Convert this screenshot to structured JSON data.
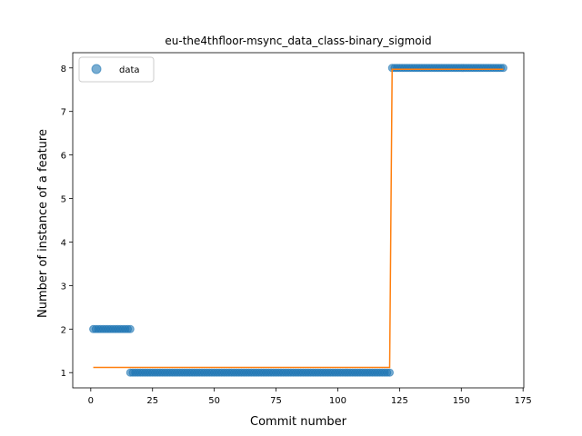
{
  "chart_data": {
    "type": "scatter",
    "title": "eu-the4thfloor-msync_data_class-binary_sigmoid",
    "xlabel": "Commit number",
    "ylabel": "Number of instance of a feature",
    "xlim": [
      -7.3,
      175.3
    ],
    "ylim": [
      0.65,
      8.35
    ],
    "xticks": [
      0,
      25,
      50,
      75,
      100,
      125,
      150,
      175
    ],
    "yticks": [
      1,
      2,
      3,
      4,
      5,
      6,
      7,
      8
    ],
    "legend": {
      "placement": "top-left",
      "entries": [
        "data"
      ]
    },
    "colors": {
      "data": "#1f77b4",
      "fit": "#ff7f0e"
    },
    "series": [
      {
        "name": "data",
        "kind": "points",
        "segments": [
          {
            "x_start": 1,
            "x_end": 16,
            "y": 2
          },
          {
            "x_start": 16,
            "x_end": 121,
            "y": 1
          },
          {
            "x_start": 122,
            "x_end": 167,
            "y": 8
          }
        ]
      },
      {
        "kind": "line",
        "points": [
          [
            1,
            1.12
          ],
          [
            121,
            1.12
          ],
          [
            122,
            7.97
          ],
          [
            167,
            7.97
          ]
        ]
      }
    ]
  }
}
